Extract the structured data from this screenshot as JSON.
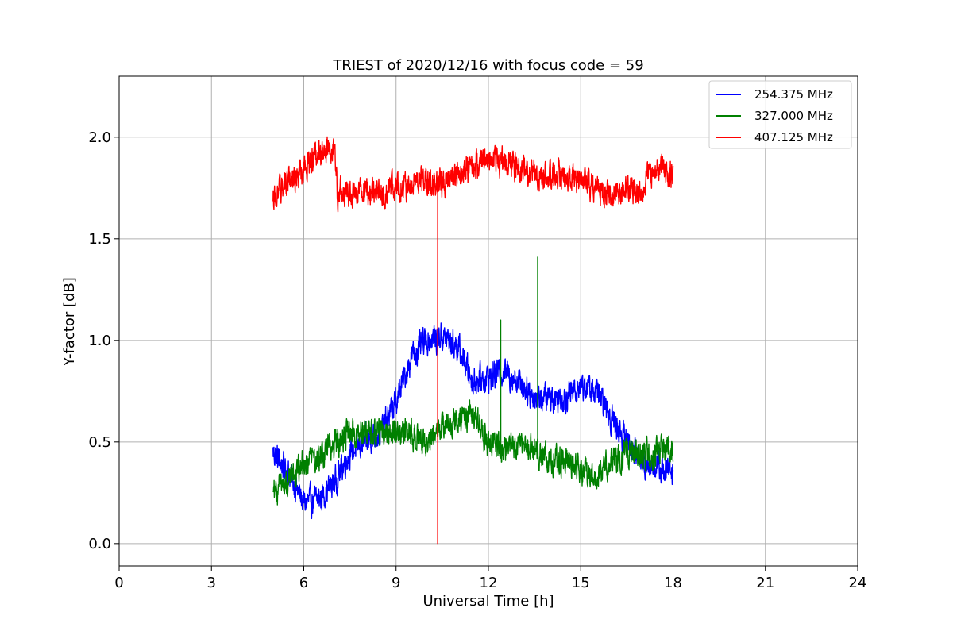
{
  "chart_data": {
    "type": "line",
    "title": "TRIEST of 2020/12/16 with focus code = 59",
    "xlabel": "Universal Time [h]",
    "ylabel": "Y-factor [dB]",
    "xlim": [
      0,
      24
    ],
    "ylim": [
      -0.11,
      2.3
    ],
    "xticks": [
      0,
      3,
      6,
      9,
      12,
      15,
      18,
      21,
      24
    ],
    "yticks": [
      0.0,
      0.5,
      1.0,
      1.5,
      2.0
    ],
    "ytick_labels": [
      "0.0",
      "0.5",
      "1.0",
      "1.5",
      "2.0"
    ],
    "grid": true,
    "legend_position": "top-right",
    "series": [
      {
        "name": "254.375 MHz",
        "color": "#0000ff",
        "x": [
          5.0,
          5.5,
          6.0,
          6.5,
          7.0,
          7.5,
          8.0,
          8.5,
          9.0,
          9.5,
          10.0,
          10.5,
          11.0,
          11.5,
          12.0,
          12.5,
          13.0,
          13.5,
          14.0,
          14.5,
          15.0,
          15.5,
          16.0,
          16.5,
          17.0,
          17.5,
          18.0
        ],
        "values": [
          0.45,
          0.35,
          0.2,
          0.22,
          0.3,
          0.45,
          0.5,
          0.55,
          0.7,
          0.92,
          1.0,
          1.02,
          0.97,
          0.8,
          0.82,
          0.85,
          0.8,
          0.72,
          0.72,
          0.72,
          0.78,
          0.75,
          0.62,
          0.5,
          0.4,
          0.38,
          0.35
        ],
        "noise": 0.07
      },
      {
        "name": "327.000 MHz",
        "color": "#008000",
        "x": [
          5.0,
          5.5,
          6.0,
          6.5,
          7.0,
          7.5,
          8.0,
          8.5,
          9.0,
          9.5,
          10.0,
          10.5,
          11.0,
          11.5,
          12.0,
          12.5,
          13.0,
          13.5,
          14.0,
          14.5,
          15.0,
          15.5,
          16.0,
          16.5,
          17.0,
          17.5,
          18.0
        ],
        "values": [
          0.25,
          0.3,
          0.4,
          0.42,
          0.5,
          0.55,
          0.55,
          0.55,
          0.55,
          0.55,
          0.5,
          0.6,
          0.6,
          0.65,
          0.5,
          0.45,
          0.48,
          0.46,
          0.42,
          0.4,
          0.35,
          0.33,
          0.4,
          0.45,
          0.42,
          0.45,
          0.45
        ],
        "noise": 0.07,
        "spikes": [
          [
            13.6,
            1.41
          ],
          [
            12.4,
            1.1
          ]
        ]
      },
      {
        "name": "407.125 MHz",
        "color": "#ff0000",
        "x": [
          5.0,
          5.5,
          6.0,
          6.5,
          7.0,
          7.1,
          7.5,
          8.0,
          8.5,
          9.0,
          9.5,
          10.0,
          10.5,
          11.0,
          11.5,
          12.0,
          12.5,
          13.0,
          13.5,
          14.0,
          14.5,
          15.0,
          15.5,
          16.0,
          16.5,
          17.0,
          17.1,
          17.5,
          18.0
        ],
        "values": [
          1.7,
          1.78,
          1.85,
          1.93,
          1.95,
          1.72,
          1.72,
          1.74,
          1.73,
          1.75,
          1.77,
          1.78,
          1.78,
          1.82,
          1.85,
          1.9,
          1.88,
          1.85,
          1.82,
          1.82,
          1.8,
          1.78,
          1.75,
          1.72,
          1.74,
          1.7,
          1.8,
          1.85,
          1.82
        ],
        "noise": 0.07,
        "spikes": [
          [
            10.35,
            0.0
          ]
        ]
      }
    ]
  }
}
